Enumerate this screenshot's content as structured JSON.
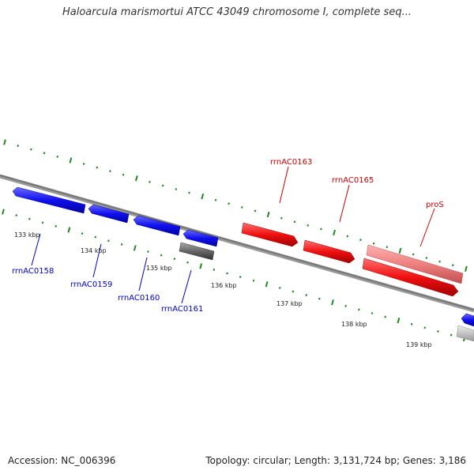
{
  "title": "Haloarcula marismortui ATCC 43049 chromosome I, complete seq...",
  "accession": "Accession: NC_006396",
  "summary": "Topology: circular; Length: 3,131,724 bp; Genes: 3,186",
  "scale_labels": [
    "133 kbp",
    "134 kbp",
    "135 kbp",
    "136 kbp",
    "137 kbp",
    "138 kbp",
    "139 kbp"
  ],
  "genes": {
    "rrnAC0158": {
      "label": "rrnAC0158",
      "strand": "plus",
      "color": "#0000ee"
    },
    "rrnAC0159": {
      "label": "rrnAC0159",
      "strand": "plus",
      "color": "#0000ee"
    },
    "rrnAC0160": {
      "label": "rrnAC0160",
      "strand": "plus",
      "color": "#0000ee"
    },
    "rrnAC0161": {
      "label": "rrnAC0161",
      "strand": "plus",
      "color": "#0000ee"
    },
    "grey_feature": {
      "strand": "plus",
      "color": "#555555"
    },
    "rrnAC0163": {
      "label": "rrnAC0163",
      "strand": "minus",
      "color": "#ee0000"
    },
    "rrnAC0165": {
      "label": "rrnAC0165",
      "strand": "minus",
      "color": "#ee0000"
    },
    "proS": {
      "label": "proS",
      "strand": "minus",
      "color": "#ee8080"
    }
  },
  "colors": {
    "forward_gene": "#0000ee",
    "reverse_gene": "#ee0000",
    "rna_gene": "#ee8080",
    "other_gene": "#555555",
    "backbone": "#888888",
    "gc_ticks": "#228822"
  }
}
